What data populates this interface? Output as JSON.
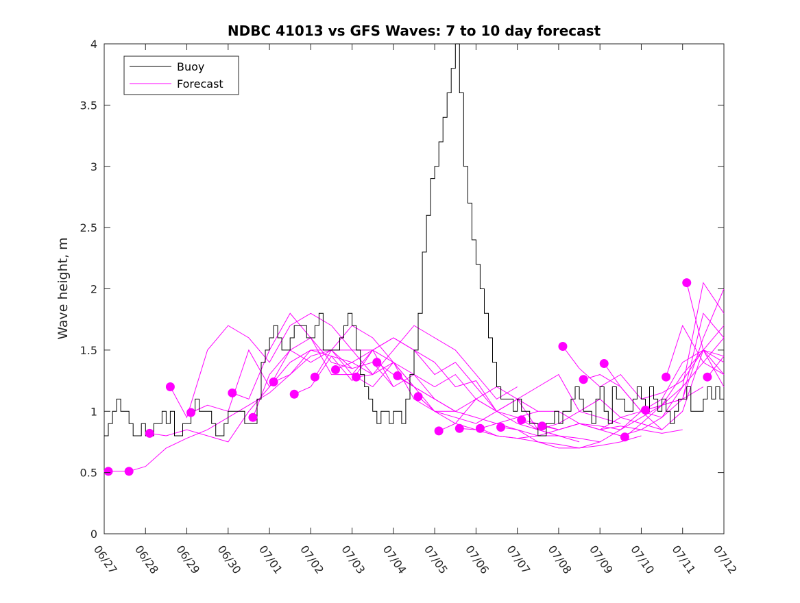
{
  "chart_data": {
    "type": "line",
    "title": "NDBC 41013 vs GFS Waves: 7 to 10 day forecast",
    "xlabel": "",
    "ylabel": "Wave height, m",
    "ylim": [
      0,
      4
    ],
    "yticks": [
      0,
      0.5,
      1,
      1.5,
      2,
      2.5,
      3,
      3.5,
      4
    ],
    "ytick_labels": [
      "0",
      "0.5",
      "1",
      "1.5",
      "2",
      "2.5",
      "3",
      "3.5",
      "4"
    ],
    "xlim": [
      "06/27",
      "07/12"
    ],
    "xtick_labels": [
      "06/27",
      "06/28",
      "06/29",
      "06/30",
      "07/01",
      "07/02",
      "07/03",
      "07/04",
      "07/05",
      "07/06",
      "07/07",
      "07/08",
      "07/09",
      "07/10",
      "07/11",
      "07/12"
    ],
    "grid": false,
    "legend": {
      "position": "top-left",
      "entries": [
        "Buoy",
        "Forecast"
      ]
    },
    "colors": {
      "buoy": "#000000",
      "forecast": "#ff00ff",
      "axes": "#262626"
    },
    "buoy": {
      "name": "Buoy",
      "x": [
        0.0,
        0.1,
        0.2,
        0.3,
        0.4,
        0.5,
        0.6,
        0.7,
        0.8,
        0.9,
        1.0,
        1.1,
        1.2,
        1.3,
        1.4,
        1.5,
        1.6,
        1.7,
        1.8,
        1.9,
        2.0,
        2.1,
        2.2,
        2.3,
        2.4,
        2.5,
        2.6,
        2.7,
        2.8,
        2.9,
        3.0,
        3.1,
        3.2,
        3.3,
        3.4,
        3.5,
        3.6,
        3.7,
        3.8,
        3.9,
        4.0,
        4.1,
        4.2,
        4.3,
        4.4,
        4.5,
        4.6,
        4.7,
        4.8,
        4.9,
        5.0,
        5.1,
        5.2,
        5.3,
        5.4,
        5.5,
        5.6,
        5.7,
        5.8,
        5.9,
        6.0,
        6.1,
        6.2,
        6.3,
        6.4,
        6.5,
        6.6,
        6.7,
        6.8,
        6.9,
        7.0,
        7.1,
        7.2,
        7.3,
        7.4,
        7.5,
        7.6,
        7.7,
        7.8,
        7.9,
        8.0,
        8.1,
        8.2,
        8.3,
        8.4,
        8.5,
        8.6,
        8.7,
        8.8,
        8.9,
        9.0,
        9.1,
        9.2,
        9.3,
        9.4,
        9.5,
        9.6,
        9.7,
        9.8,
        9.9,
        10.0,
        10.1,
        10.2,
        10.3,
        10.4,
        10.5,
        10.6,
        10.7,
        10.8,
        10.9,
        11.0,
        11.1,
        11.2,
        11.3,
        11.4,
        11.5,
        11.6,
        11.7,
        11.8,
        11.9,
        12.0,
        12.1,
        12.2,
        12.3,
        12.4,
        12.5,
        12.6,
        12.7,
        12.8,
        12.9,
        13.0,
        13.1,
        13.2,
        13.3,
        13.4,
        13.5,
        13.6,
        13.7,
        13.8,
        13.9,
        14.0,
        14.1,
        14.2,
        14.3,
        14.4,
        14.5,
        14.6,
        14.7,
        14.8,
        14.9
      ],
      "y": [
        0.8,
        0.9,
        1.0,
        1.1,
        1.0,
        1.0,
        0.9,
        0.8,
        0.8,
        0.9,
        0.8,
        0.8,
        0.9,
        0.9,
        1.0,
        0.9,
        1.0,
        0.8,
        0.8,
        0.9,
        0.9,
        1.0,
        1.1,
        1.0,
        1.0,
        1.0,
        0.9,
        0.8,
        0.8,
        0.9,
        1.0,
        1.0,
        1.0,
        1.0,
        0.9,
        0.9,
        0.9,
        1.1,
        1.4,
        1.5,
        1.6,
        1.7,
        1.6,
        1.5,
        1.5,
        1.6,
        1.7,
        1.7,
        1.7,
        1.6,
        1.6,
        1.7,
        1.8,
        1.5,
        1.5,
        1.5,
        1.5,
        1.6,
        1.7,
        1.8,
        1.7,
        1.5,
        1.3,
        1.2,
        1.1,
        1.0,
        0.9,
        1.0,
        1.0,
        0.9,
        1.0,
        1.0,
        0.9,
        1.1,
        1.3,
        1.5,
        1.8,
        2.3,
        2.6,
        2.9,
        3.0,
        3.2,
        3.4,
        3.6,
        3.8,
        4.0,
        3.6,
        3.0,
        2.7,
        2.4,
        2.2,
        2.0,
        1.8,
        1.6,
        1.4,
        1.2,
        1.1,
        1.1,
        1.1,
        1.0,
        1.1,
        1.0,
        1.0,
        0.9,
        0.9,
        0.8,
        0.8,
        0.9,
        0.9,
        1.0,
        0.9,
        1.0,
        1.0,
        1.1,
        1.2,
        1.1,
        1.0,
        1.0,
        0.9,
        1.1,
        1.2,
        1.0,
        0.9,
        1.2,
        1.1,
        1.1,
        1.0,
        1.0,
        1.1,
        1.2,
        1.1,
        1.0,
        1.2,
        1.1,
        1.0,
        1.1,
        1.0,
        0.9,
        1.0,
        1.1,
        1.1,
        1.2,
        1.0,
        1.0,
        1.0,
        1.1,
        1.2,
        1.1,
        1.2,
        1.1
      ]
    },
    "forecast_runs": [
      {
        "x": [
          0.1,
          0.6
        ],
        "y": [
          0.51,
          0.51
        ]
      },
      {
        "x": [
          0.6,
          1.0,
          1.5,
          2.0,
          2.5,
          3.0,
          3.5,
          4.0,
          4.5,
          5.0,
          5.5,
          6.0
        ],
        "y": [
          0.51,
          0.55,
          0.7,
          0.78,
          0.85,
          0.95,
          1.05,
          1.15,
          1.3,
          1.45,
          1.5,
          1.35
        ]
      },
      {
        "x": [
          1.1,
          1.5,
          2.0,
          2.5,
          3.0,
          3.5,
          4.0,
          4.5,
          5.0,
          5.5,
          6.0,
          6.5
        ],
        "y": [
          0.82,
          0.8,
          0.85,
          0.8,
          0.75,
          1.0,
          1.2,
          1.4,
          1.5,
          1.5,
          1.5,
          1.3
        ]
      },
      {
        "x": [
          1.6,
          2.0,
          2.5,
          3.0,
          3.5,
          4.0,
          4.5,
          5.0,
          5.5,
          6.0,
          6.5,
          7.0
        ],
        "y": [
          1.2,
          0.95,
          1.5,
          1.7,
          1.6,
          1.4,
          1.7,
          1.8,
          1.7,
          1.5,
          1.5,
          1.2
        ]
      },
      {
        "x": [
          2.1,
          2.5,
          3.0,
          3.5,
          4.0,
          4.5,
          5.0,
          5.5,
          6.0,
          6.5,
          7.0,
          7.5
        ],
        "y": [
          0.99,
          1.05,
          1.0,
          1.5,
          1.2,
          1.5,
          1.4,
          1.5,
          1.3,
          1.5,
          1.4,
          1.2
        ]
      },
      {
        "x": [
          3.1,
          3.5,
          4.0,
          4.5,
          5.0,
          5.5,
          6.0,
          6.5,
          7.0,
          7.5,
          8.0,
          8.5
        ],
        "y": [
          1.15,
          1.1,
          1.5,
          1.8,
          1.6,
          1.3,
          1.3,
          1.2,
          1.4,
          1.1,
          1.0,
          1.0
        ]
      },
      {
        "x": [
          3.6,
          4.0,
          4.5,
          5.0,
          5.5,
          6.0,
          6.5,
          7.0,
          7.5,
          8.0,
          8.5,
          9.0
        ],
        "y": [
          0.95,
          1.3,
          1.5,
          1.6,
          1.4,
          1.35,
          1.4,
          1.2,
          1.3,
          1.1,
          1.0,
          0.95
        ]
      },
      {
        "x": [
          4.1,
          4.5,
          5.0,
          5.5,
          6.0,
          6.5,
          7.0,
          7.5,
          8.0,
          8.5,
          9.0,
          9.5
        ],
        "y": [
          1.24,
          1.3,
          1.5,
          1.45,
          1.25,
          1.5,
          1.6,
          1.5,
          1.3,
          1.4,
          1.2,
          1.0
        ]
      },
      {
        "x": [
          4.6,
          5.0,
          5.5,
          6.0,
          6.5,
          7.0,
          7.5,
          8.0,
          8.5,
          9.0,
          9.5,
          10.0
        ],
        "y": [
          1.14,
          1.2,
          1.45,
          1.4,
          1.3,
          1.5,
          1.7,
          1.6,
          1.5,
          1.3,
          1.1,
          1.2
        ]
      },
      {
        "x": [
          5.1,
          5.5,
          6.0,
          6.5,
          7.0,
          7.5,
          8.0,
          8.5,
          9.0,
          9.5,
          10.0,
          10.5
        ],
        "y": [
          1.28,
          1.5,
          1.7,
          1.6,
          1.4,
          1.3,
          1.2,
          1.3,
          1.1,
          1.0,
          1.1,
          1.0
        ]
      },
      {
        "x": [
          5.6,
          6.0,
          6.5,
          7.0,
          7.5,
          8.0,
          8.5,
          9.0,
          9.5,
          10.0,
          10.5,
          11.0
        ],
        "y": [
          1.34,
          1.4,
          1.5,
          1.6,
          1.5,
          1.4,
          1.2,
          1.25,
          1.0,
          0.9,
          0.85,
          0.8
        ]
      },
      {
        "x": [
          6.1,
          6.5,
          7.0,
          7.5,
          8.0,
          8.5,
          9.0,
          9.5,
          10.0,
          10.5,
          11.0,
          11.5
        ],
        "y": [
          1.28,
          1.3,
          1.4,
          1.2,
          1.1,
          1.0,
          1.1,
          1.0,
          0.95,
          0.85,
          0.8,
          0.75
        ]
      },
      {
        "x": [
          6.6,
          7.0,
          7.5,
          8.0,
          8.5,
          9.0,
          9.5,
          10.0,
          10.5,
          11.0,
          11.5,
          12.0
        ],
        "y": [
          1.4,
          1.3,
          1.2,
          1.1,
          1.0,
          0.95,
          0.9,
          0.85,
          0.8,
          0.8,
          0.78,
          0.75
        ]
      },
      {
        "x": [
          7.1,
          7.5,
          8.0,
          8.5,
          9.0,
          9.5,
          10.0,
          10.5,
          11.0,
          11.5,
          12.0,
          12.5
        ],
        "y": [
          1.29,
          1.2,
          1.0,
          0.95,
          0.9,
          1.0,
          1.1,
          1.2,
          1.3,
          1.0,
          0.95,
          0.9
        ]
      },
      {
        "x": [
          7.6,
          8.0,
          8.5,
          9.0,
          9.5,
          10.0,
          10.5,
          11.0,
          11.5,
          12.0,
          12.5,
          13.0
        ],
        "y": [
          1.12,
          1.0,
          0.9,
          0.85,
          0.8,
          0.78,
          0.75,
          0.73,
          0.7,
          0.72,
          0.75,
          0.8
        ]
      },
      {
        "x": [
          8.1,
          8.5,
          9.0,
          9.5,
          10.0,
          10.5,
          11.0,
          11.5,
          12.0,
          12.5,
          13.0,
          13.5
        ],
        "y": [
          0.84,
          0.9,
          1.1,
          1.2,
          1.1,
          0.85,
          0.9,
          1.0,
          1.1,
          0.95,
          0.9,
          0.85
        ]
      },
      {
        "x": [
          8.6,
          9.0,
          9.5,
          10.0,
          10.5,
          11.0,
          11.5,
          12.0,
          12.5,
          13.0,
          13.5,
          14.0
        ],
        "y": [
          0.86,
          0.85,
          0.9,
          0.95,
          1.0,
          1.0,
          0.9,
          0.85,
          0.88,
          0.85,
          0.82,
          0.85
        ]
      },
      {
        "x": [
          9.1,
          9.5,
          10.0,
          10.5,
          11.0,
          11.5,
          12.0,
          12.5,
          13.0,
          13.5,
          14.0,
          14.5
        ],
        "y": [
          0.86,
          0.8,
          0.78,
          0.8,
          0.85,
          0.9,
          0.88,
          0.85,
          0.95,
          1.05,
          1.1,
          1.2
        ]
      },
      {
        "x": [
          9.6,
          10.0,
          10.5,
          11.0,
          11.5,
          12.0,
          12.5,
          13.0,
          13.5,
          14.0,
          14.5,
          15.0
        ],
        "y": [
          0.87,
          0.85,
          0.75,
          0.7,
          0.7,
          0.75,
          0.85,
          1.0,
          1.1,
          1.4,
          1.5,
          1.4
        ]
      },
      {
        "x": [
          10.1,
          10.5,
          11.0,
          11.5,
          12.0,
          12.5,
          13.0,
          13.5,
          14.0,
          14.5,
          15.0
        ],
        "y": [
          0.93,
          0.9,
          0.85,
          0.9,
          0.85,
          0.8,
          0.85,
          0.95,
          1.1,
          1.6,
          2.0
        ]
      },
      {
        "x": [
          10.6,
          11.0,
          11.5,
          12.0,
          12.5,
          13.0,
          13.5,
          14.0,
          14.5,
          15.0
        ],
        "y": [
          0.88,
          0.85,
          0.9,
          0.85,
          0.95,
          1.0,
          1.05,
          1.2,
          1.4,
          1.6
        ]
      },
      {
        "x": [
          11.1,
          11.5,
          12.0,
          12.5,
          13.0,
          13.5,
          14.0,
          14.5,
          15.0
        ],
        "y": [
          1.53,
          1.35,
          1.2,
          1.3,
          1.1,
          1.15,
          1.25,
          1.5,
          1.45
        ]
      },
      {
        "x": [
          11.6,
          12.0,
          12.5,
          13.0,
          13.5,
          14.0,
          14.5,
          15.0
        ],
        "y": [
          1.26,
          1.3,
          1.2,
          1.0,
          0.95,
          1.2,
          2.05,
          1.8
        ]
      },
      {
        "x": [
          12.1,
          12.5,
          13.0,
          13.5,
          14.0,
          14.5,
          15.0
        ],
        "y": [
          1.39,
          1.2,
          1.0,
          0.85,
          1.0,
          1.5,
          1.3
        ]
      },
      {
        "x": [
          12.6,
          13.0,
          13.5,
          14.0,
          14.5,
          15.0
        ],
        "y": [
          0.79,
          0.9,
          1.05,
          1.1,
          1.8,
          1.6
        ]
      },
      {
        "x": [
          13.1,
          13.5,
          14.0,
          14.5,
          15.0
        ],
        "y": [
          1.01,
          1.05,
          1.3,
          1.5,
          1.7
        ]
      },
      {
        "x": [
          13.6,
          14.0,
          14.5,
          15.0
        ],
        "y": [
          1.28,
          1.7,
          1.4,
          1.3
        ]
      },
      {
        "x": [
          14.1,
          14.5,
          15.0
        ],
        "y": [
          2.05,
          1.5,
          1.2
        ]
      },
      {
        "x": [
          14.6,
          15.0
        ],
        "y": [
          1.28,
          1.45
        ]
      }
    ],
    "forecast_markers": {
      "name": "Forecast",
      "x": [
        0.1,
        0.6,
        1.1,
        1.6,
        2.1,
        3.1,
        3.6,
        4.1,
        4.6,
        5.1,
        5.6,
        6.1,
        6.6,
        7.1,
        7.6,
        8.1,
        8.6,
        9.1,
        9.6,
        10.1,
        10.6,
        11.1,
        11.6,
        12.1,
        12.6,
        13.1,
        13.6,
        14.1,
        14.6
      ],
      "y": [
        0.51,
        0.51,
        0.82,
        1.2,
        0.99,
        1.15,
        0.95,
        1.24,
        1.14,
        1.28,
        1.34,
        1.28,
        1.4,
        1.29,
        1.12,
        0.84,
        0.86,
        0.86,
        0.87,
        0.93,
        0.88,
        1.53,
        1.26,
        1.39,
        0.79,
        1.01,
        1.28,
        2.05,
        1.28
      ]
    }
  }
}
